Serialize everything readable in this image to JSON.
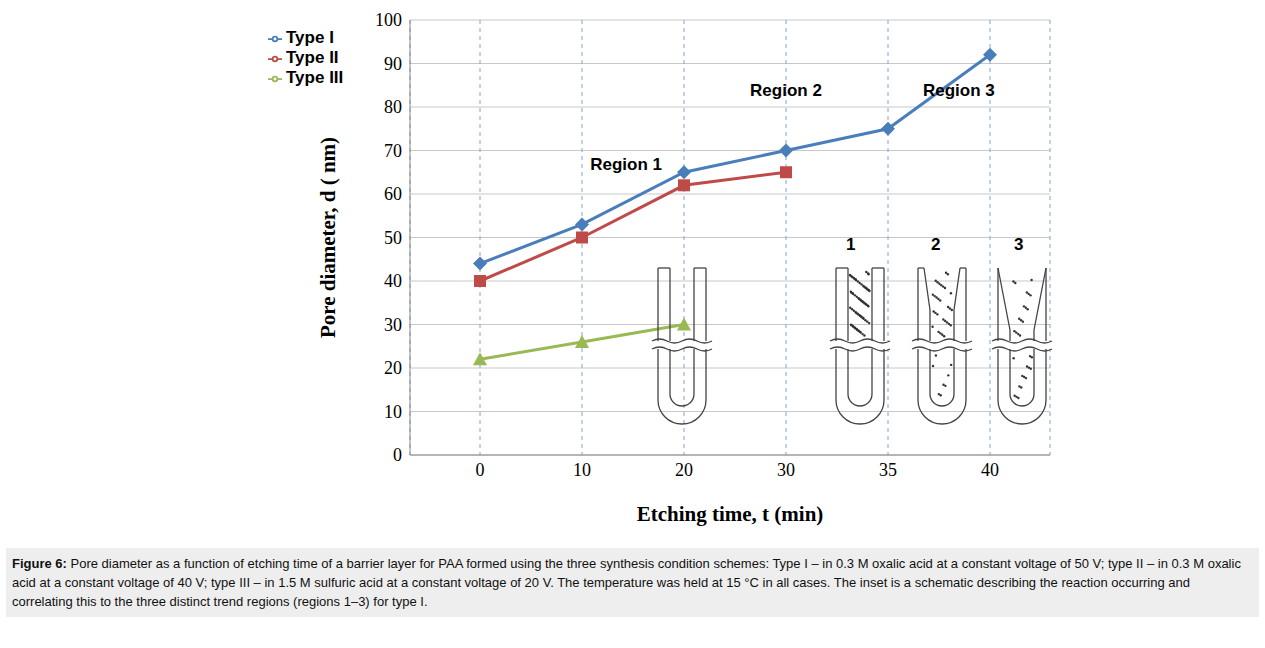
{
  "chart_data": {
    "type": "line",
    "x_label": "Etching time, t (min)",
    "y_label": "Pore diameter, d ( nm)",
    "categories": [
      "0",
      "10",
      "20",
      "30",
      "35",
      "40"
    ],
    "series": [
      {
        "name": "Type I",
        "color": "#4a7ebb",
        "marker": "diamond",
        "values": [
          44,
          53,
          65,
          70,
          75,
          92
        ]
      },
      {
        "name": "Type II",
        "color": "#be4b48",
        "marker": "square",
        "values": [
          40,
          50,
          62,
          65,
          null,
          null
        ]
      },
      {
        "name": "Type III",
        "color": "#98b954",
        "marker": "triangle",
        "values": [
          22,
          26,
          30,
          null,
          null,
          null
        ]
      }
    ],
    "ylim": [
      0,
      100
    ],
    "yticks": [
      0,
      10,
      20,
      30,
      40,
      50,
      60,
      70,
      80,
      90,
      100
    ],
    "grid": true,
    "legend": "upper left",
    "annotations": [
      {
        "text": "Region 1",
        "x": "20",
        "y": 67
      },
      {
        "text": "Region 2",
        "x": "30",
        "y": 84
      },
      {
        "text": "Region 3",
        "x": "35",
        "y": 84
      }
    ],
    "inset_labels": [
      "1",
      "2",
      "3"
    ],
    "caption": "Figure 6: Pore diameter as a function of etching time of a barrier layer for PAA formed using the three synthesis condition schemes: Type I – in 0.3 M oxalic acid at a constant voltage of 50 V; type II – in 0.3 M oxalic acid at a constant voltage of 40 V; type III – in 1.5 M sulfuric acid at a constant voltage of 20 V. The temperature was held at 15 °C in all cases. The inset is a schematic describing the reaction occurring and correlating this to the three distinct trend regions (regions 1–3) for type I."
  }
}
